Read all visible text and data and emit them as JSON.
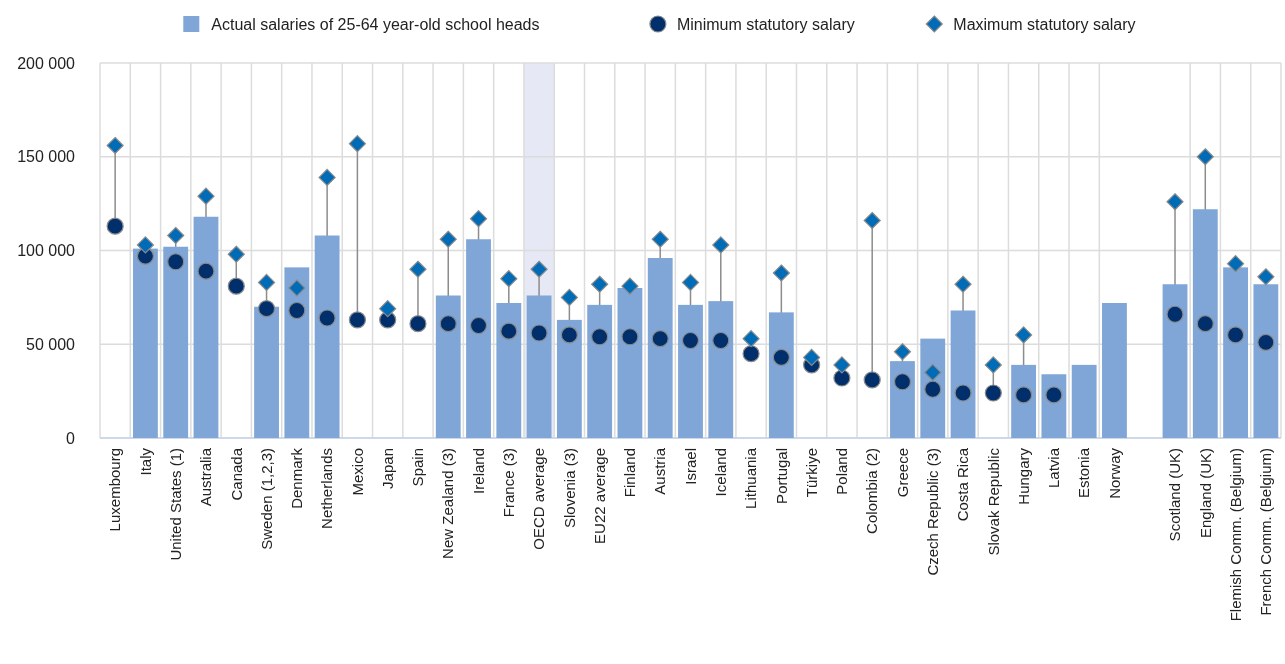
{
  "chart_data": {
    "type": "bar",
    "categories": [
      "Luxembourg",
      "Italy",
      "United States (1)",
      "Australia",
      "Canada",
      "Sweden (1,2,3)",
      "Denmark",
      "Netherlands",
      "Mexico",
      "Japan",
      "Spain",
      "New Zealand (3)",
      "Ireland",
      "France (3)",
      "OECD average",
      "Slovenia (3)",
      "EU22 average",
      "Finland",
      "Austria",
      "Israel",
      "Iceland",
      "Lithuania",
      "Portugal",
      "Türkiye",
      "Poland",
      "Colombia (2)",
      "Greece",
      "Czech Republic (3)",
      "Costa Rica",
      "Slovak Republic",
      "Hungary",
      "Latvia",
      "Estonia",
      "Norway",
      null,
      "Scotland (UK)",
      "England (UK)",
      "Flemish Comm. (Belgium)",
      "French Comm. (Belgium)"
    ],
    "series": [
      {
        "name": "Actual salaries of 25-64 year-old school heads",
        "color": "#7fa6d7",
        "values": [
          null,
          101000,
          102000,
          118000,
          null,
          70000,
          91000,
          108000,
          null,
          null,
          null,
          76000,
          106000,
          72000,
          76000,
          63000,
          71000,
          80000,
          96000,
          71000,
          73000,
          null,
          67000,
          null,
          null,
          null,
          41000,
          53000,
          68000,
          null,
          39000,
          34000,
          39000,
          72000,
          null,
          82000,
          122000,
          91000,
          82000
        ]
      },
      {
        "name": "Minimum statutory salary",
        "type": "scatter",
        "marker": "circle",
        "color": "#002f6c",
        "values": [
          113000,
          97000,
          94000,
          89000,
          81000,
          69000,
          68000,
          64000,
          63000,
          63000,
          61000,
          61000,
          60000,
          57000,
          56000,
          55000,
          54000,
          54000,
          53000,
          52000,
          52000,
          45000,
          43000,
          39000,
          32000,
          31000,
          30000,
          26000,
          24000,
          24000,
          23000,
          23000,
          null,
          null,
          null,
          66000,
          61000,
          55000,
          51000
        ]
      },
      {
        "name": "Maximum statutory salary",
        "type": "scatter",
        "marker": "diamond",
        "color": "#006bb6",
        "values": [
          156000,
          103000,
          108000,
          129000,
          98000,
          83000,
          80000,
          139000,
          157000,
          69000,
          90000,
          106000,
          117000,
          85000,
          90000,
          75000,
          82000,
          81000,
          106000,
          83000,
          103000,
          53000,
          88000,
          43000,
          39000,
          116000,
          46000,
          35000,
          82000,
          39000,
          55000,
          null,
          null,
          null,
          null,
          126000,
          150000,
          93000,
          86000
        ]
      }
    ],
    "ylim": [
      0,
      200000
    ],
    "yticks": [
      0,
      {
        "value": 50000,
        "label": "50 000"
      },
      {
        "value": 100000,
        "label": "100 000"
      },
      {
        "value": 150000,
        "label": "150 000"
      },
      {
        "value": 200000,
        "label": "200 000"
      }
    ],
    "bands": [
      {
        "axis": "x",
        "from": "OECD average",
        "to": "OECD average",
        "color": "#e6e9f5"
      }
    ],
    "grid": true,
    "legend": "top"
  }
}
